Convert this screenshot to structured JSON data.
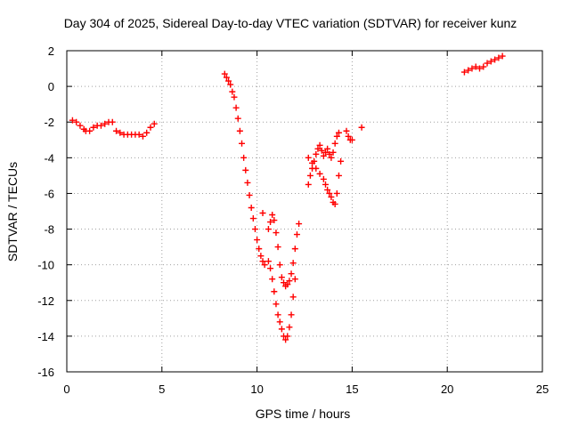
{
  "chart_data": {
    "type": "scatter",
    "title": "Day 304 of 2025, Sidereal Day-to-day VTEC variation (SDTVAR) for receiver kunz",
    "xlabel": "GPS time / hours",
    "ylabel": "SDTVAR / TECUs",
    "xlim": [
      0,
      25
    ],
    "ylim": [
      -16,
      2
    ],
    "xticks": [
      "0",
      "5",
      "10",
      "15",
      "20",
      "25"
    ],
    "yticks": [
      "2",
      "0",
      "-2",
      "-4",
      "-6",
      "-8",
      "-10",
      "-12",
      "-14",
      "-16"
    ],
    "grid": true,
    "marker": "plus",
    "series": [
      {
        "color": "#ff0000",
        "points": [
          [
            0.3,
            -1.9
          ],
          [
            0.5,
            -2.0
          ],
          [
            0.7,
            -2.2
          ],
          [
            0.9,
            -2.4
          ],
          [
            1.0,
            -2.5
          ],
          [
            1.2,
            -2.5
          ],
          [
            1.4,
            -2.3
          ],
          [
            1.6,
            -2.2
          ],
          [
            1.8,
            -2.2
          ],
          [
            2.0,
            -2.1
          ],
          [
            2.2,
            -2.0
          ],
          [
            2.4,
            -2.0
          ],
          [
            2.6,
            -2.5
          ],
          [
            2.8,
            -2.6
          ],
          [
            3.0,
            -2.7
          ],
          [
            3.2,
            -2.7
          ],
          [
            3.4,
            -2.7
          ],
          [
            3.6,
            -2.7
          ],
          [
            3.8,
            -2.7
          ],
          [
            4.0,
            -2.8
          ],
          [
            4.2,
            -2.6
          ],
          [
            4.4,
            -2.3
          ],
          [
            4.6,
            -2.1
          ],
          [
            8.3,
            0.7
          ],
          [
            8.4,
            0.5
          ],
          [
            8.5,
            0.3
          ],
          [
            8.6,
            0.1
          ],
          [
            8.7,
            -0.3
          ],
          [
            8.8,
            -0.6
          ],
          [
            8.9,
            -1.2
          ],
          [
            9.0,
            -1.8
          ],
          [
            9.1,
            -2.5
          ],
          [
            9.2,
            -3.2
          ],
          [
            9.3,
            -4.0
          ],
          [
            9.4,
            -4.7
          ],
          [
            9.5,
            -5.4
          ],
          [
            9.6,
            -6.1
          ],
          [
            9.7,
            -6.8
          ],
          [
            9.8,
            -7.4
          ],
          [
            9.9,
            -8.0
          ],
          [
            10.0,
            -8.6
          ],
          [
            10.1,
            -9.1
          ],
          [
            10.2,
            -9.5
          ],
          [
            10.3,
            -9.8
          ],
          [
            10.4,
            -10.0
          ],
          [
            10.3,
            -7.1
          ],
          [
            10.6,
            -8.0
          ],
          [
            10.7,
            -7.6
          ],
          [
            10.8,
            -7.2
          ],
          [
            10.9,
            -7.5
          ],
          [
            11.0,
            -8.2
          ],
          [
            11.1,
            -9.0
          ],
          [
            11.2,
            -10.0
          ],
          [
            11.3,
            -10.7
          ],
          [
            11.4,
            -11.0
          ],
          [
            11.5,
            -11.2
          ],
          [
            11.6,
            -11.1
          ],
          [
            11.7,
            -10.9
          ],
          [
            11.8,
            -10.5
          ],
          [
            11.9,
            -9.9
          ],
          [
            12.0,
            -9.1
          ],
          [
            12.1,
            -8.3
          ],
          [
            12.2,
            -7.7
          ],
          [
            10.6,
            -9.8
          ],
          [
            10.7,
            -10.2
          ],
          [
            10.8,
            -10.8
          ],
          [
            10.9,
            -11.5
          ],
          [
            11.0,
            -12.2
          ],
          [
            11.1,
            -12.8
          ],
          [
            11.2,
            -13.2
          ],
          [
            11.3,
            -13.6
          ],
          [
            11.4,
            -14.0
          ],
          [
            11.5,
            -14.2
          ],
          [
            11.6,
            -14.0
          ],
          [
            11.7,
            -13.5
          ],
          [
            11.8,
            -12.8
          ],
          [
            11.9,
            -11.8
          ],
          [
            12.0,
            -10.8
          ],
          [
            12.7,
            -5.5
          ],
          [
            12.8,
            -5.0
          ],
          [
            12.9,
            -4.6
          ],
          [
            13.0,
            -4.2
          ],
          [
            13.1,
            -3.8
          ],
          [
            13.2,
            -3.5
          ],
          [
            13.3,
            -3.3
          ],
          [
            13.4,
            -3.6
          ],
          [
            13.5,
            -3.9
          ],
          [
            13.6,
            -3.7
          ],
          [
            13.7,
            -3.5
          ],
          [
            13.8,
            -3.8
          ],
          [
            13.9,
            -4.0
          ],
          [
            14.0,
            -3.7
          ],
          [
            14.1,
            -3.2
          ],
          [
            14.2,
            -2.8
          ],
          [
            14.3,
            -2.6
          ],
          [
            12.7,
            -4.0
          ],
          [
            12.9,
            -4.3
          ],
          [
            13.1,
            -4.6
          ],
          [
            13.3,
            -4.9
          ],
          [
            13.5,
            -5.2
          ],
          [
            13.6,
            -5.5
          ],
          [
            13.7,
            -5.8
          ],
          [
            13.8,
            -6.0
          ],
          [
            13.9,
            -6.2
          ],
          [
            14.0,
            -6.5
          ],
          [
            14.1,
            -6.6
          ],
          [
            14.2,
            -6.0
          ],
          [
            14.3,
            -5.0
          ],
          [
            14.4,
            -4.2
          ],
          [
            14.7,
            -2.5
          ],
          [
            14.8,
            -2.8
          ],
          [
            14.9,
            -3.0
          ],
          [
            15.0,
            -3.0
          ],
          [
            15.5,
            -2.3
          ],
          [
            20.9,
            0.8
          ],
          [
            21.1,
            0.9
          ],
          [
            21.3,
            1.0
          ],
          [
            21.5,
            1.1
          ],
          [
            21.7,
            1.0
          ],
          [
            21.9,
            1.1
          ],
          [
            22.1,
            1.3
          ],
          [
            22.3,
            1.4
          ],
          [
            22.5,
            1.5
          ],
          [
            22.7,
            1.6
          ],
          [
            22.9,
            1.7
          ]
        ]
      }
    ]
  }
}
